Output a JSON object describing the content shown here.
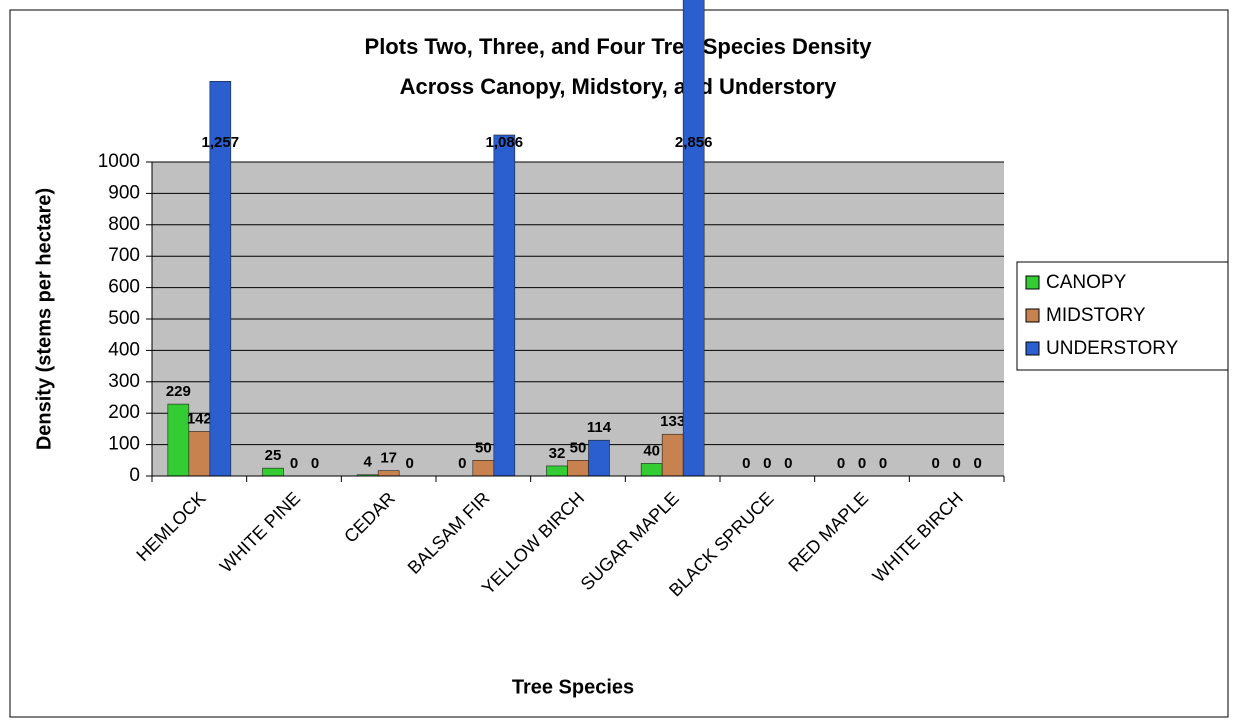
{
  "chart_data": {
    "type": "bar",
    "title": [
      "Plots Two, Three, and Four Tree Species Density",
      "Across Canopy, Midstory, and Understory"
    ],
    "x_label": "Tree Species",
    "y_label": "Density (stems per hectare)",
    "categories": [
      "HEMLOCK",
      "WHITE PINE",
      "CEDAR",
      "BALSAM FIR",
      "YELLOW BIRCH",
      "SUGAR MAPLE",
      "BLACK SPRUCE",
      "RED MAPLE",
      "WHITE BIRCH"
    ],
    "series": [
      {
        "name": "CANOPY",
        "color": "#33cc33",
        "values": [
          229,
          25,
          4,
          0,
          32,
          40,
          0,
          0,
          0
        ]
      },
      {
        "name": "MIDSTORY",
        "color": "#c8824f",
        "values": [
          142,
          0,
          17,
          50,
          50,
          133,
          0,
          0,
          0
        ]
      },
      {
        "name": "UNDERSTORY",
        "color": "#2b5fd0",
        "values": [
          1257,
          0,
          0,
          1086,
          114,
          2856,
          0,
          0,
          0
        ],
        "value_labels": [
          "1,257",
          "0",
          "0",
          "1,086",
          "114",
          "2,856",
          "0",
          "0",
          "0"
        ]
      }
    ],
    "ylim": [
      0,
      1000
    ],
    "yticks": [
      0,
      100,
      200,
      300,
      400,
      500,
      600,
      700,
      800,
      900,
      1000
    ],
    "grid": true,
    "legend": "right"
  }
}
